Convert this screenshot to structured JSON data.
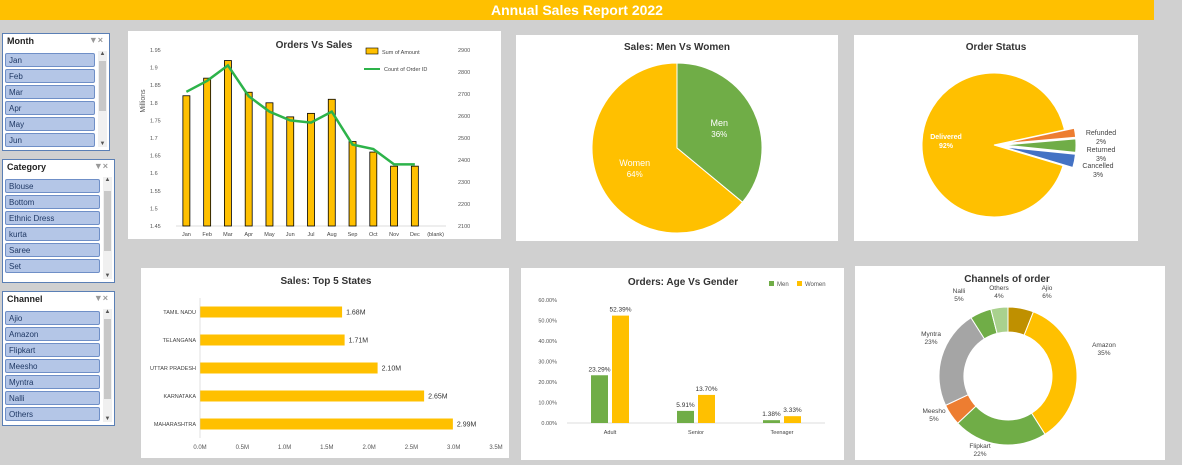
{
  "header": {
    "title": "Annual Sales Report 2022"
  },
  "slicers": {
    "month": {
      "title": "Month",
      "items": [
        "Jan",
        "Feb",
        "Mar",
        "Apr",
        "May",
        "Jun"
      ]
    },
    "category": {
      "title": "Category",
      "items": [
        "Blouse",
        "Bottom",
        "Ethnic Dress",
        "kurta",
        "Saree",
        "Set"
      ]
    },
    "channel": {
      "title": "Channel",
      "items": [
        "Ajio",
        "Amazon",
        "Flipkart",
        "Meesho",
        "Myntra",
        "Nalli",
        "Others"
      ]
    }
  },
  "colors": {
    "yellow": "#ffc000",
    "green": "#70ad47",
    "line": "#2db34a",
    "orange": "#ed7d31",
    "blue": "#4472c4",
    "gray": "#a5a5a5",
    "lightgreen": "#a9d18e",
    "olive": "#bf9000"
  },
  "chart_data": [
    {
      "id": "orders_vs_sales",
      "type": "bar",
      "title": "Orders Vs Sales",
      "ylabel": "Millions",
      "categories": [
        "Jan",
        "Feb",
        "Mar",
        "Apr",
        "May",
        "Jun",
        "Jul",
        "Aug",
        "Sep",
        "Oct",
        "Nov",
        "Dec",
        "(blank)"
      ],
      "ylim": [
        1.45,
        1.95
      ],
      "yticks": [
        "1.45",
        "1.5",
        "1.55",
        "1.6",
        "1.65",
        "1.7",
        "1.75",
        "1.8",
        "1.85",
        "1.9",
        "1.95"
      ],
      "y2lim": [
        2100,
        2900
      ],
      "y2ticks": [
        "2100",
        "2200",
        "2300",
        "2400",
        "2500",
        "2600",
        "2700",
        "2800",
        "2900"
      ],
      "series": [
        {
          "name": "Sum of Amount",
          "type": "bar",
          "values": [
            1.82,
            1.87,
            1.92,
            1.83,
            1.8,
            1.76,
            1.77,
            1.81,
            1.69,
            1.66,
            1.62,
            1.62,
            null
          ]
        },
        {
          "name": "Count of Order ID",
          "type": "line",
          "axis": "secondary",
          "values": [
            2710,
            2760,
            2830,
            2690,
            2620,
            2580,
            2570,
            2620,
            2470,
            2450,
            2380,
            2380,
            null
          ]
        }
      ]
    },
    {
      "id": "men_vs_women",
      "type": "pie",
      "title": "Sales: Men Vs Women",
      "labels": [
        "Men",
        "Women"
      ],
      "values": [
        36,
        64
      ],
      "display": [
        "36%",
        "64%"
      ]
    },
    {
      "id": "order_status",
      "type": "pie",
      "title": "Order Status",
      "labels": [
        "Delivered",
        "Refunded",
        "Returned",
        "Cancelled"
      ],
      "values": [
        92,
        2,
        3,
        3
      ],
      "display": [
        "92%",
        "2%",
        "3%",
        "3%"
      ]
    },
    {
      "id": "top_states",
      "type": "bar",
      "orientation": "horizontal",
      "title": "Sales: Top 5 States",
      "categories": [
        "TAMIL NADU",
        "TELANGANA",
        "UTTAR PRADESH",
        "KARNATAKA",
        "MAHARASHTRA"
      ],
      "values": [
        1.68,
        1.71,
        2.1,
        2.65,
        2.99
      ],
      "value_labels": [
        "1.68M",
        "1.71M",
        "2.10M",
        "2.65M",
        "2.99M"
      ],
      "xlim": [
        0,
        3.5
      ],
      "xticks": [
        "0.0M",
        "0.5M",
        "1.0M",
        "1.5M",
        "2.0M",
        "2.5M",
        "3.0M",
        "3.5M"
      ]
    },
    {
      "id": "age_vs_gender",
      "type": "bar",
      "title": "Orders: Age Vs Gender",
      "categories": [
        "Adult",
        "Senior",
        "Teenager"
      ],
      "ylim": [
        0,
        60
      ],
      "yticks": [
        "0.00%",
        "10.00%",
        "20.00%",
        "30.00%",
        "40.00%",
        "50.00%",
        "60.00%"
      ],
      "series": [
        {
          "name": "Men",
          "values": [
            23.29,
            5.91,
            1.38
          ],
          "labels": [
            "23.29%",
            "5.91%",
            "1.38%"
          ]
        },
        {
          "name": "Women",
          "values": [
            52.39,
            13.7,
            3.33
          ],
          "labels": [
            "52.39%",
            "13.70%",
            "3.33%"
          ]
        }
      ]
    },
    {
      "id": "channels",
      "type": "pie",
      "donut": true,
      "title": "Channels of order",
      "labels": [
        "Ajio",
        "Amazon",
        "Flipkart",
        "Meesho",
        "Myntra",
        "Nalli",
        "Others"
      ],
      "values": [
        6,
        35,
        22,
        5,
        23,
        5,
        4
      ],
      "display": [
        "6%",
        "35%",
        "22%",
        "5%",
        "23%",
        "5%",
        "4%"
      ]
    }
  ]
}
